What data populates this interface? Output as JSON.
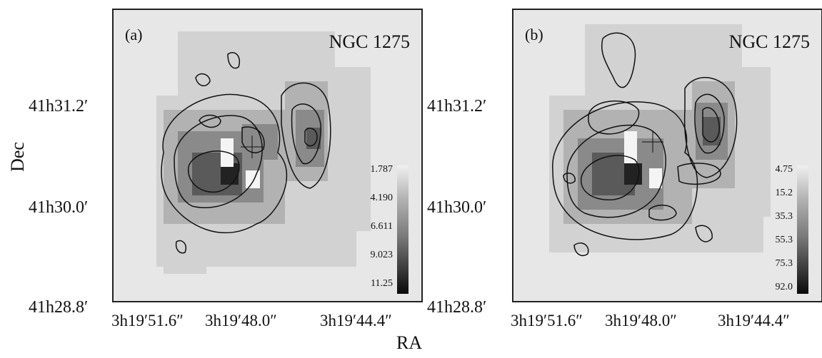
{
  "figure": {
    "ylabel": "Dec",
    "xlabel": "RA",
    "y_ticks": [
      "41h31.2′",
      "41h30.0′",
      "41h28.8′"
    ],
    "x_ticks": [
      "3h19′51.6″",
      "3h19′48.0″",
      "3h19′44.4″"
    ]
  },
  "panels": [
    {
      "label": "(a)",
      "title": "NGC 1275",
      "colorbar_ticks": [
        "1.787",
        "4.190",
        "6.611",
        "9.023",
        "11.25"
      ]
    },
    {
      "label": "(b)",
      "title": "NGC 1275",
      "colorbar_ticks": [
        "4.75",
        "15.2",
        "35.3",
        "55.3",
        "75.3",
        "92.0"
      ]
    }
  ]
}
